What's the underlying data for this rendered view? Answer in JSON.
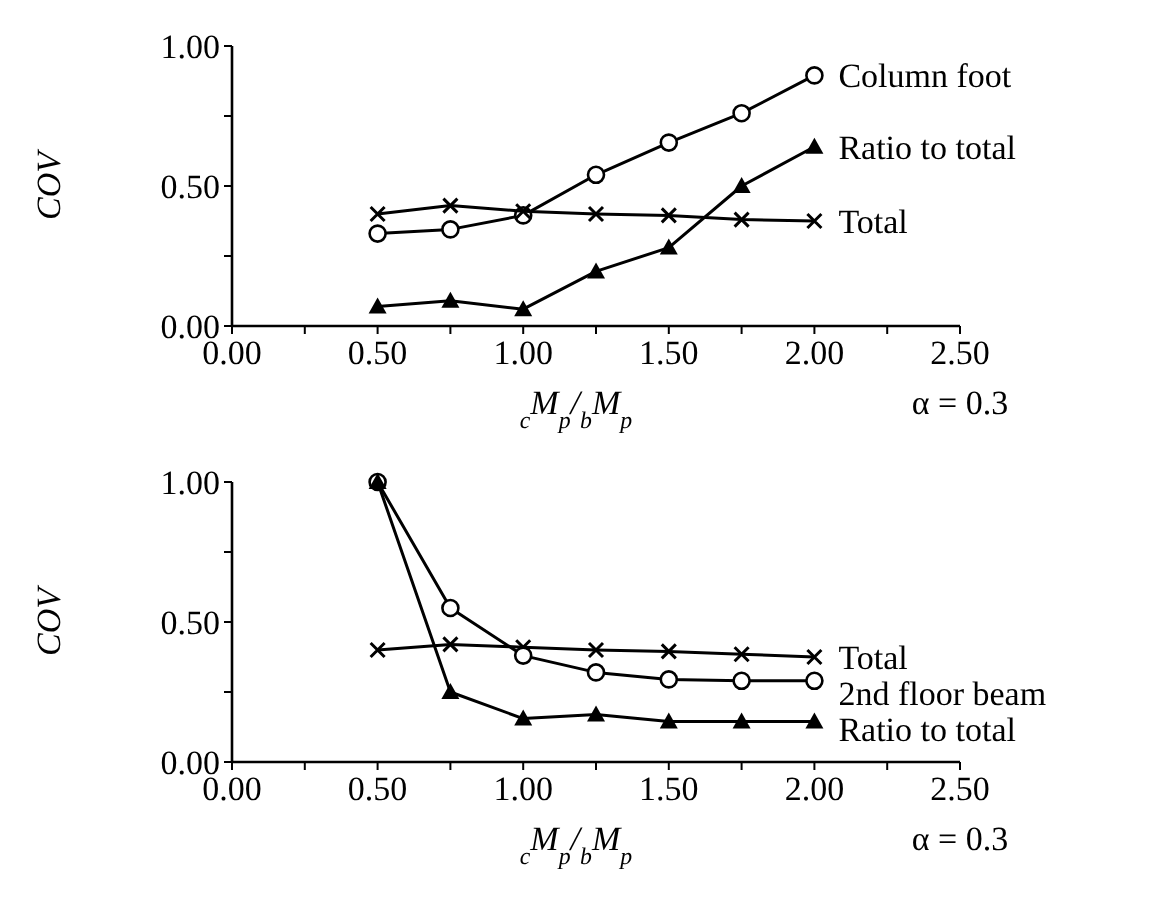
{
  "chart_data": [
    {
      "type": "line",
      "ylabel": "COV",
      "xlabel": "$_{c}$M$_{p}$/$_{b}$M$_{p}$",
      "annotations": [
        "α = 0.3"
      ],
      "x": [
        0.5,
        0.75,
        1.0,
        1.25,
        1.5,
        1.75,
        2.0
      ],
      "xlim": [
        0,
        2.5
      ],
      "ylim": [
        0,
        1
      ],
      "xticks": [
        {
          "value": 0,
          "label": "0.00"
        },
        {
          "value": 0.25,
          "label": null
        },
        {
          "value": 0.5,
          "label": "0.50"
        },
        {
          "value": 0.75,
          "label": null
        },
        {
          "value": 1,
          "label": "1.00"
        },
        {
          "value": 1.25,
          "label": null
        },
        {
          "value": 1.5,
          "label": "1.50"
        },
        {
          "value": 1.75,
          "label": null
        },
        {
          "value": 2,
          "label": "2.00"
        },
        {
          "value": 2.25,
          "label": null
        },
        {
          "value": 2.5,
          "label": "2.50"
        }
      ],
      "yticks": [
        {
          "value": 0,
          "label": "0.00"
        },
        {
          "value": 0.25,
          "label": null
        },
        {
          "value": 0.5,
          "label": "0.50"
        },
        {
          "value": 0.75,
          "label": null
        },
        {
          "value": 1,
          "label": "1.00"
        }
      ],
      "series": [
        {
          "name": "Column foot",
          "color": "#000000",
          "marker": "circle",
          "values": [
            0.33,
            0.345,
            0.395,
            0.54,
            0.655,
            0.76,
            0.895
          ]
        },
        {
          "name": "Ratio to total",
          "color": "#000000",
          "marker": "triangle",
          "values": [
            0.07,
            0.09,
            0.06,
            0.195,
            0.28,
            0.5,
            0.64
          ]
        },
        {
          "name": "Total",
          "color": "#000000",
          "marker": "cross",
          "values": [
            0.4,
            0.43,
            0.41,
            0.4,
            0.395,
            0.38,
            0.375
          ]
        }
      ]
    },
    {
      "type": "line",
      "ylabel": "COV",
      "xlabel": "$_{c}$M$_{p}$/$_{b}$M$_{p}$",
      "annotations": [
        "α = 0.3"
      ],
      "x": [
        0.5,
        0.75,
        1.0,
        1.25,
        1.5,
        1.75,
        2.0
      ],
      "xlim": [
        0,
        2.5
      ],
      "ylim": [
        0,
        1
      ],
      "xticks": [
        {
          "value": 0,
          "label": "0.00"
        },
        {
          "value": 0.25,
          "label": null
        },
        {
          "value": 0.5,
          "label": "0.50"
        },
        {
          "value": 0.75,
          "label": null
        },
        {
          "value": 1,
          "label": "1.00"
        },
        {
          "value": 1.25,
          "label": null
        },
        {
          "value": 1.5,
          "label": "1.50"
        },
        {
          "value": 1.75,
          "label": null
        },
        {
          "value": 2,
          "label": "2.00"
        },
        {
          "value": 2.25,
          "label": null
        },
        {
          "value": 2.5,
          "label": "2.50"
        }
      ],
      "yticks": [
        {
          "value": 0,
          "label": "0.00"
        },
        {
          "value": 0.25,
          "label": null
        },
        {
          "value": 0.5,
          "label": "0.50"
        },
        {
          "value": 0.75,
          "label": null
        },
        {
          "value": 1,
          "label": "1.00"
        }
      ],
      "series": [
        {
          "name": "Total",
          "color": "#000000",
          "marker": "cross",
          "values": [
            0.4,
            0.42,
            0.41,
            0.4,
            0.395,
            0.385,
            0.375
          ]
        },
        {
          "name": "2nd floor beam",
          "color": "#000000",
          "marker": "circle",
          "values": [
            1.0,
            0.55,
            0.38,
            0.32,
            0.295,
            0.29,
            0.29
          ]
        },
        {
          "name": "Ratio to total",
          "color": "#000000",
          "marker": "triangle",
          "values": [
            1.0,
            0.25,
            0.155,
            0.17,
            0.145,
            0.145,
            0.145
          ]
        }
      ]
    }
  ]
}
